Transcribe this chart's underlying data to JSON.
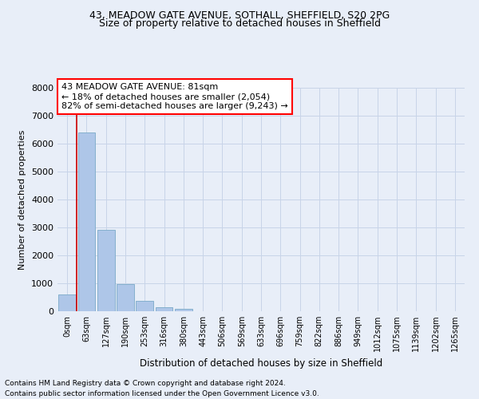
{
  "title_line1": "43, MEADOW GATE AVENUE, SOTHALL, SHEFFIELD, S20 2PG",
  "title_line2": "Size of property relative to detached houses in Sheffield",
  "xlabel": "Distribution of detached houses by size in Sheffield",
  "ylabel": "Number of detached properties",
  "footnote1": "Contains HM Land Registry data © Crown copyright and database right 2024.",
  "footnote2": "Contains public sector information licensed under the Open Government Licence v3.0.",
  "bar_labels": [
    "0sqm",
    "63sqm",
    "127sqm",
    "190sqm",
    "253sqm",
    "316sqm",
    "380sqm",
    "443sqm",
    "506sqm",
    "569sqm",
    "633sqm",
    "696sqm",
    "759sqm",
    "822sqm",
    "886sqm",
    "949sqm",
    "1012sqm",
    "1075sqm",
    "1139sqm",
    "1202sqm",
    "1265sqm"
  ],
  "bar_values": [
    600,
    6400,
    2920,
    970,
    360,
    150,
    80,
    0,
    0,
    0,
    0,
    0,
    0,
    0,
    0,
    0,
    0,
    0,
    0,
    0,
    0
  ],
  "bar_color": "#aec6e8",
  "bar_edge_color": "#7aaac8",
  "vline_x": 0.5,
  "annotation_text": "43 MEADOW GATE AVENUE: 81sqm\n← 18% of detached houses are smaller (2,054)\n82% of semi-detached houses are larger (9,243) →",
  "annotation_box_color": "white",
  "annotation_box_edge_color": "red",
  "ylim": [
    0,
    8000
  ],
  "yticks": [
    0,
    1000,
    2000,
    3000,
    4000,
    5000,
    6000,
    7000,
    8000
  ],
  "grid_color": "#c8d4e8",
  "background_color": "#e8eef8",
  "vline_color": "#cc0000",
  "fig_width": 6.0,
  "fig_height": 5.0,
  "title1_fontsize": 9,
  "title2_fontsize": 9,
  "annotation_fontsize": 8,
  "ylabel_fontsize": 8,
  "xlabel_fontsize": 8.5,
  "footnote_fontsize": 6.5,
  "ytick_fontsize": 8,
  "xtick_fontsize": 7
}
